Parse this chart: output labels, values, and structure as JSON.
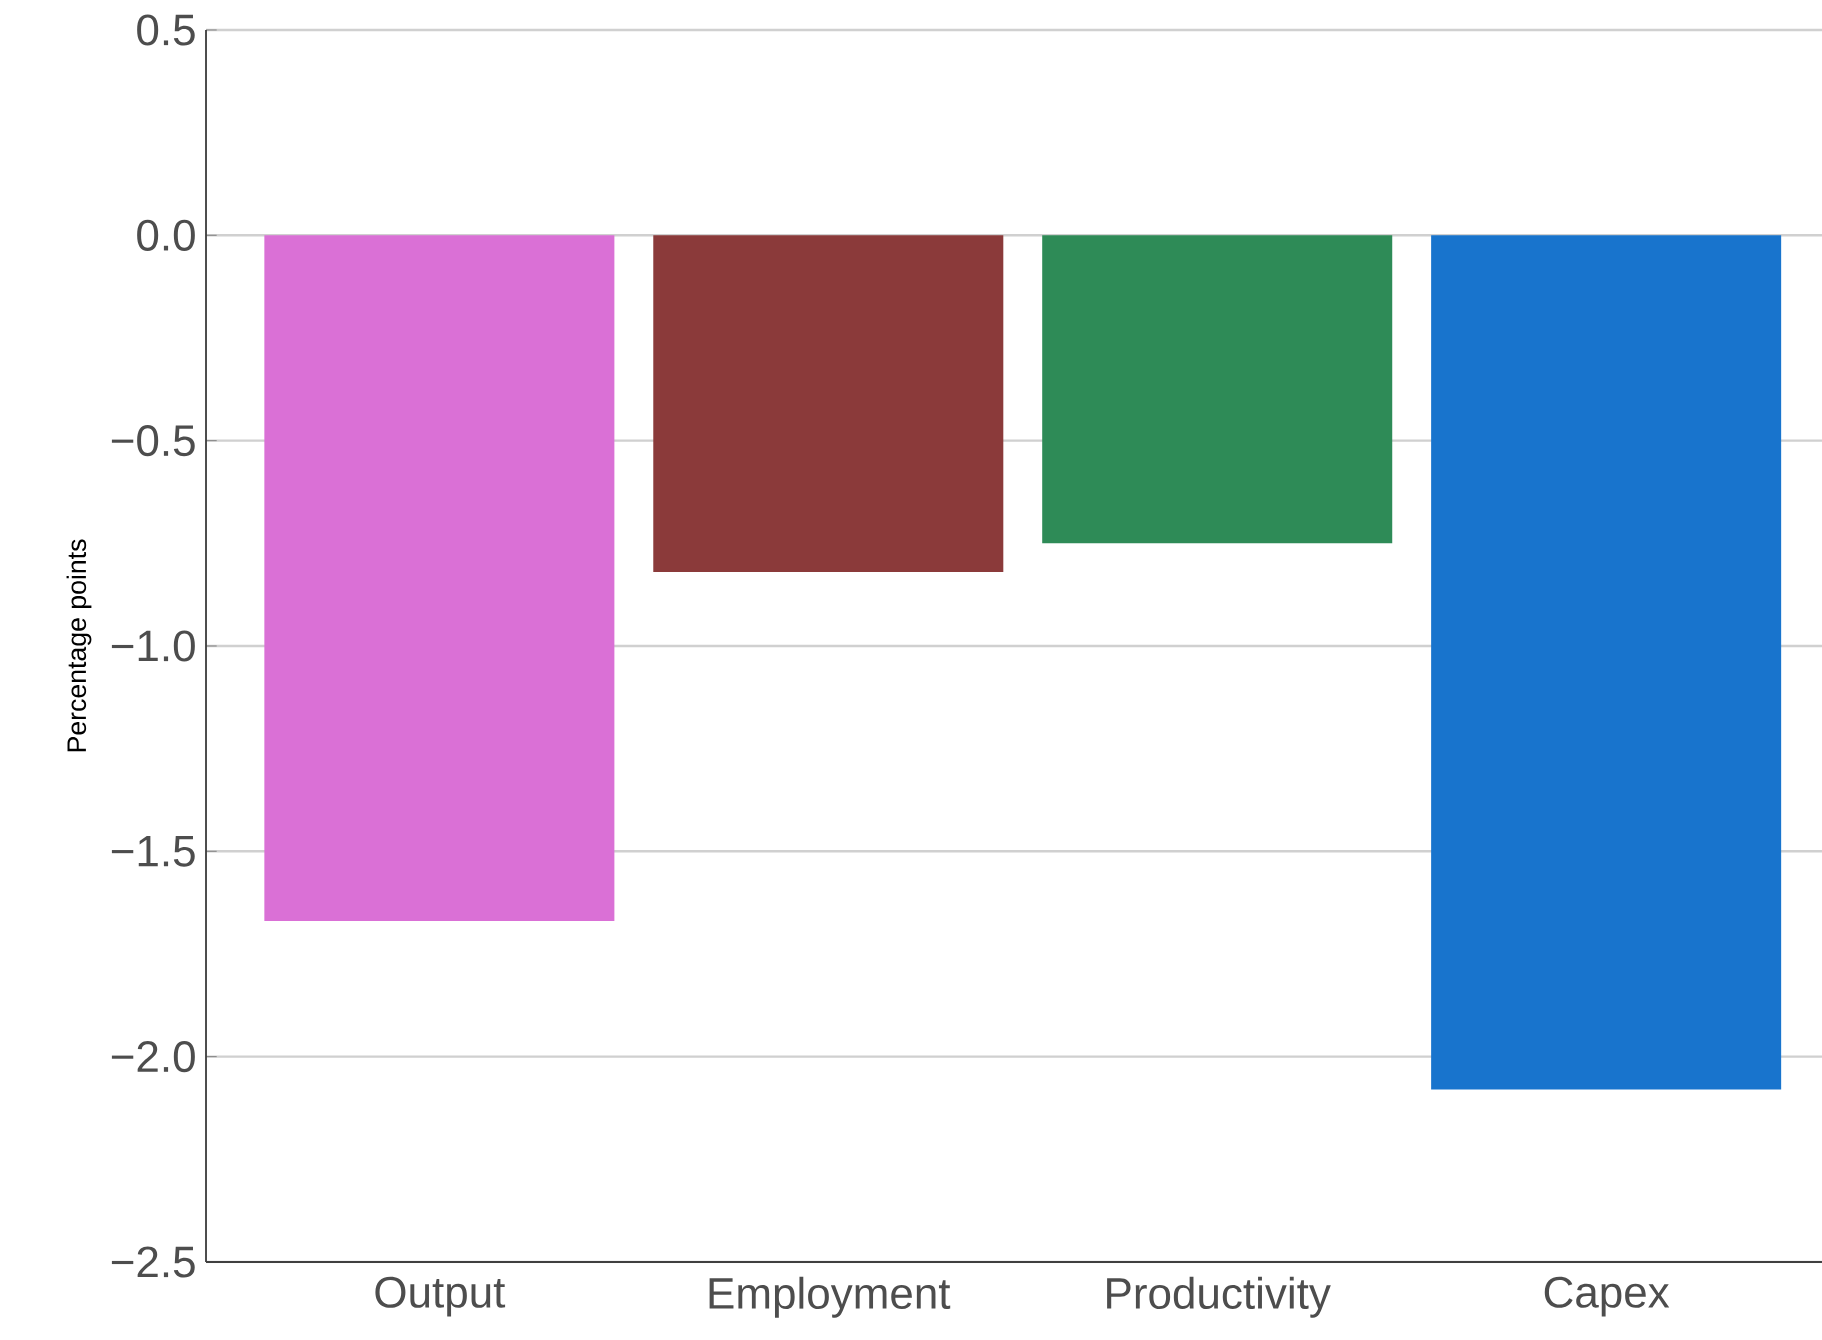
{
  "chart_data": {
    "type": "bar",
    "ylabel": "Percentage points",
    "categories": [
      "Output",
      "Employment",
      "Productivity",
      "Capex"
    ],
    "values": [
      -1.67,
      -0.82,
      -0.75,
      -2.08
    ],
    "colors": [
      "#da70d6",
      "#8b3a3a",
      "#2e8b57",
      "#1874cd"
    ],
    "ylim": [
      -2.5,
      0.5
    ],
    "yticks": [
      {
        "value": -2.5,
        "label": "−2.5"
      },
      {
        "value": -2.0,
        "label": "−2.0"
      },
      {
        "value": -1.5,
        "label": "−1.5"
      },
      {
        "value": -1.0,
        "label": "−1.0"
      },
      {
        "value": -0.5,
        "label": "−0.5"
      },
      {
        "value": 0.0,
        "label": "0.0"
      },
      {
        "value": 0.5,
        "label": "0.5"
      }
    ],
    "grid": "y"
  }
}
